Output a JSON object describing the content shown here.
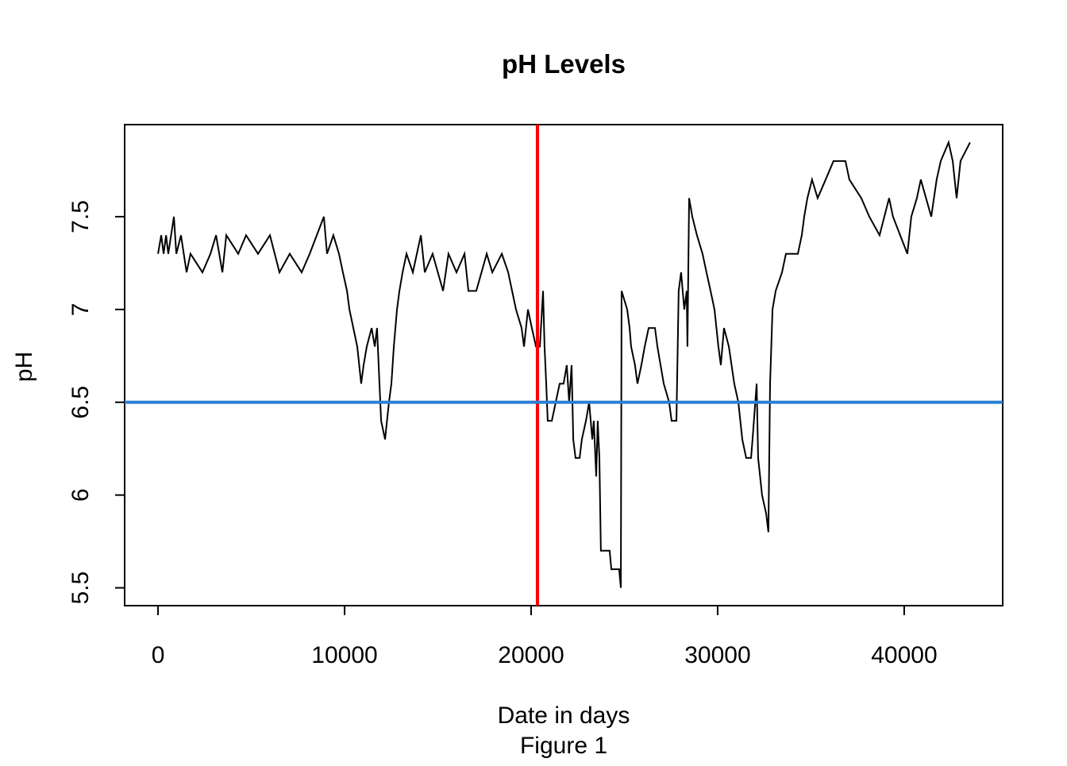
{
  "chart_data": {
    "type": "line",
    "title": "pH Levels",
    "x_label": "Date in days",
    "y_label": "pH",
    "caption": "Figure 1",
    "xlim": [
      -1790,
      45280
    ],
    "ylim": [
      5.404,
      7.996
    ],
    "xticks": [
      0,
      10000,
      20000,
      30000,
      40000
    ],
    "yticks": [
      5.5,
      6.0,
      6.5,
      7.0,
      7.5
    ],
    "vline": {
      "value": 20340,
      "color": "#ff0000"
    },
    "hline": {
      "value": 6.5,
      "color": "#2a7fd4"
    },
    "series": [
      {
        "color": "#000000",
        "x": [
          0,
          170,
          300,
          430,
          550,
          850,
          980,
          1230,
          1530,
          1740,
          2380,
          2810,
          3110,
          3450,
          3660,
          4300,
          4720,
          5360,
          6000,
          6510,
          7060,
          7700,
          8130,
          8890,
          9060,
          9400,
          9700,
          9910,
          10130,
          10260,
          10470,
          10680,
          10890,
          11020,
          11190,
          11450,
          11620,
          11740,
          11870,
          11960,
          12170,
          12380,
          12510,
          12640,
          12810,
          12940,
          13110,
          13320,
          13660,
          14090,
          14300,
          14720,
          15280,
          15570,
          16000,
          16430,
          16640,
          17060,
          17620,
          17920,
          18430,
          18770,
          18980,
          19190,
          19490,
          19620,
          19830,
          20040,
          20260,
          20470,
          20640,
          20720,
          20810,
          20890,
          21110,
          21320,
          21530,
          21740,
          21910,
          22040,
          22170,
          22260,
          22380,
          22600,
          22720,
          22940,
          23110,
          23280,
          23360,
          23490,
          23570,
          23660,
          23740,
          24210,
          24300,
          24720,
          24810,
          24850,
          25150,
          25280,
          25360,
          25570,
          25700,
          25910,
          26090,
          26300,
          26640,
          26770,
          26940,
          27110,
          27400,
          27530,
          27790,
          27910,
          28040,
          28210,
          28340,
          28380,
          28470,
          28640,
          28890,
          29190,
          29400,
          29620,
          29830,
          30040,
          30170,
          30340,
          30600,
          30890,
          31110,
          31320,
          31530,
          31790,
          31870,
          32090,
          32170,
          32380,
          32600,
          32720,
          32810,
          32940,
          33110,
          33450,
          33660,
          34300,
          34510,
          34640,
          34810,
          35060,
          35360,
          35790,
          36210,
          36850,
          37060,
          37700,
          38130,
          38680,
          39190,
          39400,
          40170,
          40380,
          40680,
          40890,
          41450,
          41740,
          41960,
          42380,
          42600,
          42810,
          43020,
          43530
        ],
        "values": [
          7.3,
          7.4,
          7.3,
          7.4,
          7.3,
          7.5,
          7.3,
          7.4,
          7.2,
          7.3,
          7.2,
          7.3,
          7.4,
          7.2,
          7.4,
          7.3,
          7.4,
          7.3,
          7.4,
          7.2,
          7.3,
          7.2,
          7.3,
          7.5,
          7.3,
          7.4,
          7.3,
          7.2,
          7.1,
          7.0,
          6.9,
          6.8,
          6.6,
          6.7,
          6.8,
          6.9,
          6.8,
          6.9,
          6.6,
          6.4,
          6.3,
          6.5,
          6.6,
          6.8,
          7.0,
          7.1,
          7.2,
          7.3,
          7.2,
          7.4,
          7.2,
          7.3,
          7.1,
          7.3,
          7.2,
          7.3,
          7.1,
          7.1,
          7.3,
          7.2,
          7.3,
          7.2,
          7.1,
          7.0,
          6.9,
          6.8,
          7.0,
          6.9,
          6.8,
          6.8,
          7.1,
          6.8,
          6.6,
          6.4,
          6.4,
          6.5,
          6.6,
          6.6,
          6.7,
          6.5,
          6.7,
          6.3,
          6.2,
          6.2,
          6.3,
          6.4,
          6.5,
          6.3,
          6.4,
          6.1,
          6.4,
          6.2,
          5.7,
          5.7,
          5.6,
          5.6,
          5.5,
          7.1,
          7.0,
          6.9,
          6.8,
          6.7,
          6.6,
          6.7,
          6.8,
          6.9,
          6.9,
          6.8,
          6.7,
          6.6,
          6.5,
          6.4,
          6.4,
          7.1,
          7.2,
          7.0,
          7.1,
          6.8,
          7.6,
          7.5,
          7.4,
          7.3,
          7.2,
          7.1,
          7.0,
          6.8,
          6.7,
          6.9,
          6.8,
          6.6,
          6.5,
          6.3,
          6.2,
          6.2,
          6.3,
          6.6,
          6.2,
          6.0,
          5.9,
          5.8,
          6.6,
          7.0,
          7.1,
          7.2,
          7.3,
          7.3,
          7.4,
          7.5,
          7.6,
          7.7,
          7.6,
          7.7,
          7.8,
          7.8,
          7.7,
          7.6,
          7.5,
          7.4,
          7.6,
          7.5,
          7.3,
          7.5,
          7.6,
          7.7,
          7.5,
          7.7,
          7.8,
          7.9,
          7.8,
          7.6,
          7.8,
          7.9
        ]
      }
    ]
  }
}
